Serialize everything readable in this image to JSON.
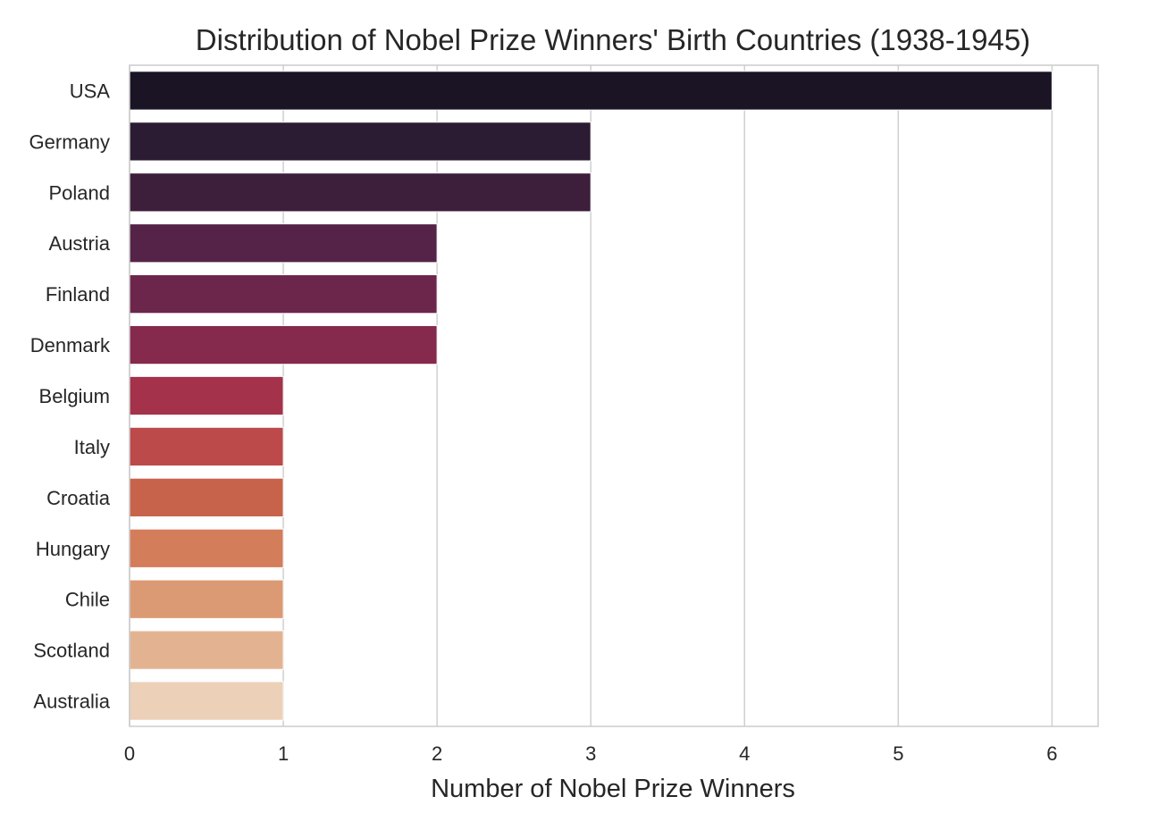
{
  "chart_data": {
    "type": "bar",
    "orientation": "horizontal",
    "title": "Distribution of Nobel Prize Winners' Birth Countries (1938-1945)",
    "xlabel": "Number of Nobel Prize Winners",
    "ylabel": "",
    "categories": [
      "USA",
      "Germany",
      "Poland",
      "Austria",
      "Finland",
      "Denmark",
      "Belgium",
      "Italy",
      "Croatia",
      "Hungary",
      "Chile",
      "Scotland",
      "Australia"
    ],
    "values": [
      6,
      3,
      3,
      2,
      2,
      2,
      1,
      1,
      1,
      1,
      1,
      1,
      1
    ],
    "colors": [
      "#1a1424",
      "#2c1c33",
      "#3d1f3c",
      "#552347",
      "#6c264b",
      "#85294d",
      "#a3324a",
      "#bc4a4a",
      "#c8634b",
      "#d47d5a",
      "#db9a74",
      "#e3b391",
      "#ecd0b8"
    ],
    "xlim": [
      0,
      6.3
    ],
    "xticks": [
      0,
      1,
      2,
      3,
      4,
      5,
      6
    ],
    "grid": "vertical",
    "legend": "none"
  }
}
